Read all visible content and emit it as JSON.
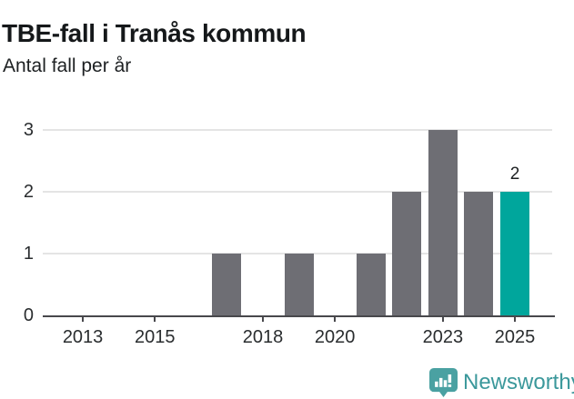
{
  "header": {
    "title": "TBE-fall i Tranås kommun",
    "subtitle": "Antal fall per år"
  },
  "chart_data": {
    "type": "bar",
    "title": "TBE-fall i Tranås kommun",
    "subtitle": "Antal fall per år",
    "xlabel": "",
    "ylabel": "Antal fall per år",
    "categories": [
      2012,
      2013,
      2014,
      2015,
      2016,
      2017,
      2018,
      2019,
      2020,
      2021,
      2022,
      2023,
      2024,
      2025
    ],
    "values": [
      0,
      0,
      0,
      0,
      0,
      1,
      0,
      1,
      0,
      1,
      2,
      3,
      2,
      2
    ],
    "ylim": [
      0,
      3
    ],
    "yticks": [
      0,
      1,
      2,
      3
    ],
    "xticks": [
      2013,
      2015,
      2018,
      2020,
      2023,
      2025
    ],
    "grid": true,
    "legend": "none",
    "highlight_x": 2025,
    "annotations": [
      {
        "x": 2025,
        "y": 2,
        "text": "2"
      }
    ],
    "colors": {
      "bar": "#6e6e74",
      "highlight": "#00a69c",
      "grid": "#e4e4e4",
      "axis": "#48484c"
    }
  },
  "footer": {
    "brand": "Newsworthy",
    "logo_icon": "speech-bubble-bar-chart",
    "brand_color": "#3b989b",
    "icon_color": "#4aa1a2"
  }
}
